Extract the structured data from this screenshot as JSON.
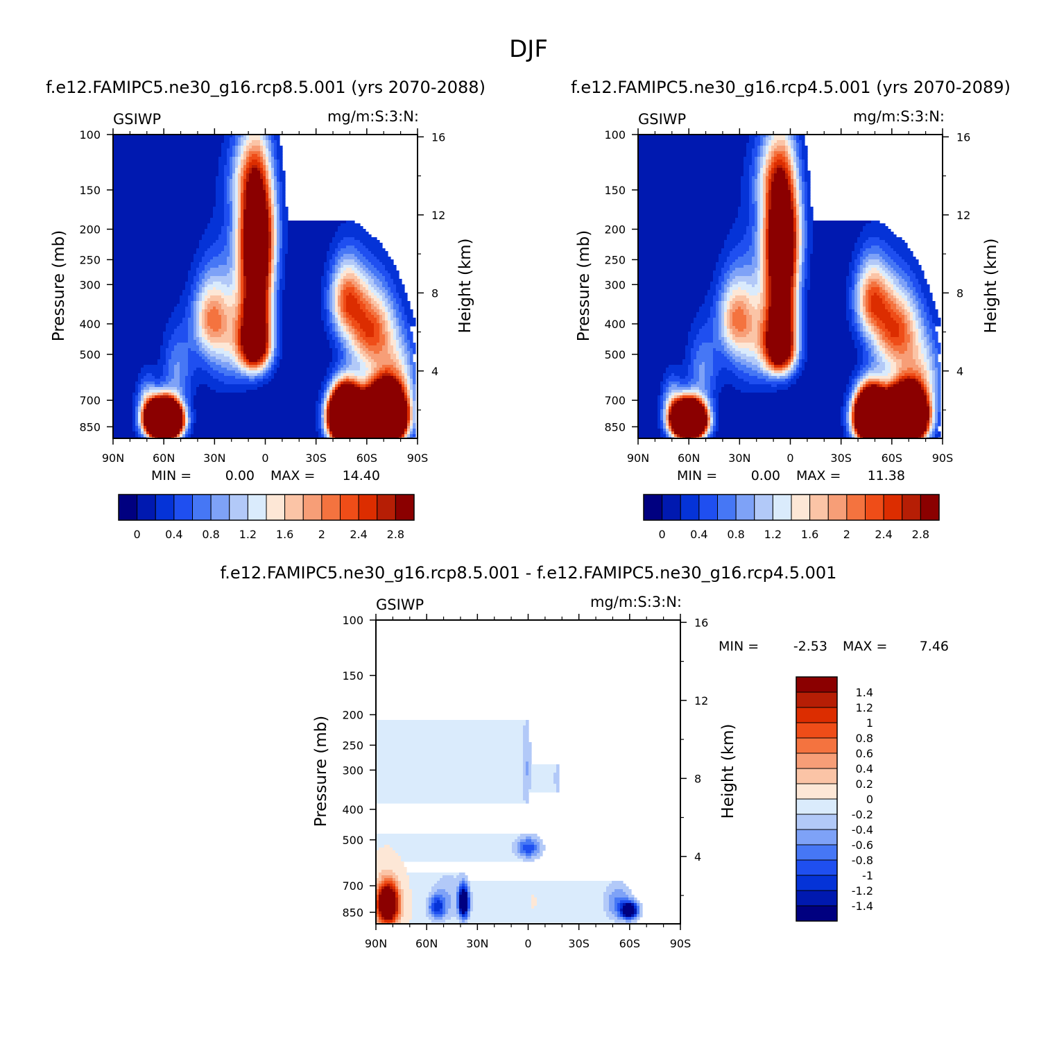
{
  "figure_title": "DJF",
  "colors": {
    "panel_palette": [
      "#000080",
      "#0019b0",
      "#0533d7",
      "#1f4ff0",
      "#4677f5",
      "#7ea2f7",
      "#b2c9f8",
      "#daebfc",
      "#fde7d6",
      "#fbc4a6",
      "#f79e77",
      "#f4733f",
      "#ef4d18",
      "#dc2d00",
      "#b61e05",
      "#8b0000"
    ],
    "diff_palette": [
      "#000080",
      "#0019b0",
      "#0533d7",
      "#1f4ff0",
      "#4677f5",
      "#7ea2f7",
      "#b2c9f8",
      "#daebfc",
      "#fde7d6",
      "#fbc4a6",
      "#f79e77",
      "#f4733f",
      "#ef4d18",
      "#dc2d00",
      "#b61e05",
      "#8b0000"
    ]
  },
  "chart_data": [
    {
      "type": "heatmap",
      "title": "f.e12.FAMIPC5.ne30_g16.rcp8.5.001 (yrs 2070-2088)",
      "left_label": "GSIWP",
      "right_label": "mg/m:S:3:N:",
      "xlabel": "",
      "ylabel": "Pressure (mb)",
      "y2label": "Height (km)",
      "x_ticks": [
        "90N",
        "60N",
        "30N",
        "0",
        "30S",
        "60S",
        "90S"
      ],
      "y_ticks": [
        "100",
        "150",
        "200",
        "250",
        "300",
        "400",
        "500",
        "700",
        "850"
      ],
      "y2_ticks": [
        "16",
        "12",
        "8",
        "4"
      ],
      "min_label": "MIN =",
      "min_value": "0.00",
      "max_label": "MAX =",
      "max_value": "14.40",
      "colorbar_labels": [
        "0",
        "0.4",
        "0.8",
        "1.2",
        "1.6",
        "2",
        "2.4",
        "2.8"
      ],
      "levels": [
        0,
        0.2,
        0.4,
        0.6,
        0.8,
        1.0,
        1.2,
        1.4,
        1.6,
        1.8,
        2.0,
        2.2,
        2.4,
        2.6,
        2.8
      ],
      "features": [
        {
          "lat": -70,
          "p": 790,
          "amp": 14.0,
          "slat": 11,
          "sp": 140
        },
        {
          "lat": -48,
          "p": 790,
          "amp": 12.0,
          "slat": 9,
          "sp": 140
        },
        {
          "lat": -62,
          "p": 420,
          "amp": 2.3,
          "slat": 14,
          "sp": 130
        },
        {
          "lat": -48,
          "p": 330,
          "amp": 1.9,
          "slat": 10,
          "sp": 90
        },
        {
          "lat": -78,
          "p": 580,
          "amp": 1.2,
          "slat": 12,
          "sp": 160
        },
        {
          "lat": 5,
          "p": 300,
          "amp": 3.6,
          "slat": 9,
          "sp": 160
        },
        {
          "lat": 6,
          "p": 470,
          "amp": 3.0,
          "slat": 9,
          "sp": 90
        },
        {
          "lat": 5,
          "p": 200,
          "amp": 2.2,
          "slat": 11,
          "sp": 70
        },
        {
          "lat": 10,
          "p": 135,
          "amp": 1.0,
          "slat": 12,
          "sp": 40
        },
        {
          "lat": 22,
          "p": 420,
          "amp": 1.3,
          "slat": 16,
          "sp": 180
        },
        {
          "lat": 33,
          "p": 380,
          "amp": 1.3,
          "slat": 10,
          "sp": 100
        },
        {
          "lat": 60,
          "p": 810,
          "amp": 13.0,
          "slat": 9,
          "sp": 100
        },
        {
          "lat": 52,
          "p": 560,
          "amp": 0.8,
          "slat": 9,
          "sp": 160
        },
        {
          "lat": 70,
          "p": 700,
          "amp": 0.9,
          "slat": 6,
          "sp": 130
        }
      ]
    },
    {
      "type": "heatmap",
      "title": "f.e12.FAMIPC5.ne30_g16.rcp4.5.001 (yrs 2070-2089)",
      "left_label": "GSIWP",
      "right_label": "mg/m:S:3:N:",
      "xlabel": "",
      "ylabel": "Pressure (mb)",
      "y2label": "Height (km)",
      "x_ticks": [
        "90N",
        "60N",
        "30N",
        "0",
        "30S",
        "60S",
        "90S"
      ],
      "y_ticks": [
        "100",
        "150",
        "200",
        "250",
        "300",
        "400",
        "500",
        "700",
        "850"
      ],
      "y2_ticks": [
        "16",
        "12",
        "8",
        "4"
      ],
      "min_label": "MIN =",
      "min_value": "0.00",
      "max_label": "MAX =",
      "max_value": "11.38",
      "colorbar_labels": [
        "0",
        "0.4",
        "0.8",
        "1.2",
        "1.6",
        "2",
        "2.4",
        "2.8"
      ],
      "levels": [
        0,
        0.2,
        0.4,
        0.6,
        0.8,
        1.0,
        1.2,
        1.4,
        1.6,
        1.8,
        2.0,
        2.2,
        2.4,
        2.6,
        2.8
      ],
      "features": [
        {
          "lat": -68,
          "p": 790,
          "amp": 12.0,
          "slat": 11,
          "sp": 140
        },
        {
          "lat": -48,
          "p": 790,
          "amp": 10.0,
          "slat": 9,
          "sp": 140
        },
        {
          "lat": -62,
          "p": 420,
          "amp": 2.3,
          "slat": 14,
          "sp": 130
        },
        {
          "lat": -48,
          "p": 330,
          "amp": 1.9,
          "slat": 10,
          "sp": 90
        },
        {
          "lat": -78,
          "p": 580,
          "amp": 1.2,
          "slat": 12,
          "sp": 160
        },
        {
          "lat": 5,
          "p": 300,
          "amp": 3.6,
          "slat": 9,
          "sp": 160
        },
        {
          "lat": 6,
          "p": 480,
          "amp": 3.2,
          "slat": 9,
          "sp": 90
        },
        {
          "lat": 5,
          "p": 200,
          "amp": 2.2,
          "slat": 11,
          "sp": 70
        },
        {
          "lat": 10,
          "p": 135,
          "amp": 1.0,
          "slat": 12,
          "sp": 40
        },
        {
          "lat": 22,
          "p": 420,
          "amp": 1.3,
          "slat": 16,
          "sp": 180
        },
        {
          "lat": 33,
          "p": 380,
          "amp": 1.3,
          "slat": 10,
          "sp": 100
        },
        {
          "lat": 60,
          "p": 810,
          "amp": 11.0,
          "slat": 9,
          "sp": 100
        },
        {
          "lat": 52,
          "p": 560,
          "amp": 0.8,
          "slat": 9,
          "sp": 160
        },
        {
          "lat": 70,
          "p": 700,
          "amp": 0.9,
          "slat": 6,
          "sp": 130
        }
      ]
    },
    {
      "type": "heatmap",
      "title": "f.e12.FAMIPC5.ne30_g16.rcp8.5.001 - f.e12.FAMIPC5.ne30_g16.rcp4.5.001",
      "left_label": "GSIWP",
      "right_label": "mg/m:S:3:N:",
      "xlabel": "",
      "ylabel": "Pressure (mb)",
      "y2label": "Height (km)",
      "x_ticks": [
        "90N",
        "60N",
        "30N",
        "0",
        "30S",
        "60S",
        "90S"
      ],
      "y_ticks": [
        "100",
        "150",
        "200",
        "250",
        "300",
        "400",
        "500",
        "700",
        "850"
      ],
      "y2_ticks": [
        "16",
        "12",
        "8",
        "4"
      ],
      "min_label": "MIN =",
      "min_value": "-2.53",
      "max_label": "MAX =",
      "max_value": "7.46",
      "colorbar_labels": [
        "1.4",
        "1.2",
        "1",
        "0.8",
        "0.6",
        "0.4",
        "0.2",
        "0",
        "-0.2",
        "-0.4",
        "-0.6",
        "-0.8",
        "-1",
        "-1.2",
        "-1.4"
      ],
      "levels": [
        -1.4,
        -1.2,
        -1.0,
        -0.8,
        -0.6,
        -0.4,
        -0.2,
        0,
        0.2,
        0.4,
        0.6,
        0.8,
        1.0,
        1.2,
        1.4
      ],
      "features": [
        {
          "lat": 0,
          "p": 560,
          "amp": -0.05,
          "slat": 55,
          "sp": 600
        },
        {
          "lat": 5,
          "p": 200,
          "amp": -0.05,
          "slat": 12,
          "sp": 150
        },
        {
          "lat": 83,
          "p": 800,
          "amp": 3.0,
          "slat": 6,
          "sp": 110
        },
        {
          "lat": 38,
          "p": 790,
          "amp": -2.2,
          "slat": 3,
          "sp": 90
        },
        {
          "lat": 54,
          "p": 820,
          "amp": -1.0,
          "slat": 5,
          "sp": 70
        },
        {
          "lat": 48,
          "p": 760,
          "amp": -0.35,
          "slat": 9,
          "sp": 140
        },
        {
          "lat": -60,
          "p": 840,
          "amp": -2.0,
          "slat": 5,
          "sp": 50
        },
        {
          "lat": -53,
          "p": 790,
          "amp": -0.6,
          "slat": 8,
          "sp": 110
        },
        {
          "lat": 0,
          "p": 530,
          "amp": -0.9,
          "slat": 7,
          "sp": 40
        },
        {
          "lat": 1,
          "p": 300,
          "amp": -0.35,
          "slat": 2.5,
          "sp": 90
        },
        {
          "lat": -17,
          "p": 320,
          "amp": -0.25,
          "slat": 2,
          "sp": 50
        },
        {
          "lat": -3,
          "p": 780,
          "amp": 0.06,
          "slat": 3,
          "sp": 70
        }
      ]
    }
  ]
}
